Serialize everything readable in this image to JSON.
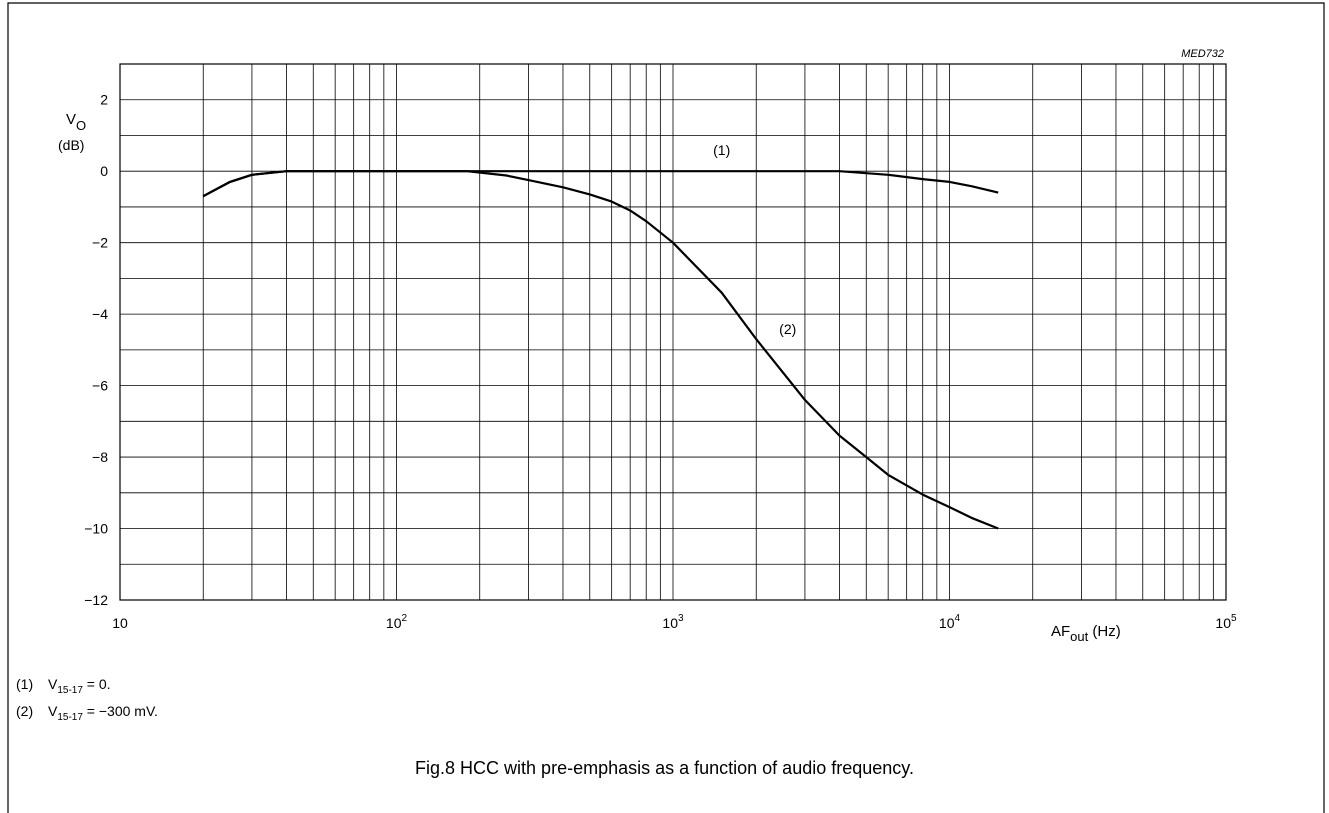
{
  "figure": {
    "code": "MED732",
    "caption": "Fig.8  HCC with pre-emphasis as a function of audio frequency."
  },
  "notes": [
    {
      "num": "(1)",
      "var": "V",
      "sub": "15-17",
      "text": " = 0."
    },
    {
      "num": "(2)",
      "var": "V",
      "sub": "15-17",
      "text": " = −300 mV."
    }
  ],
  "chart_data": {
    "type": "line",
    "x_scale": "log",
    "xlim": [
      10,
      100000
    ],
    "ylim": [
      -12,
      3
    ],
    "grid": true,
    "ylabel": {
      "main": "V",
      "sub": "O",
      "unit": "(dB)"
    },
    "xlabel": {
      "main": "AF",
      "sub": "out",
      "unit": " (Hz)"
    },
    "yticks": [
      {
        "v": 2,
        "label": "2"
      },
      {
        "v": 0,
        "label": "0"
      },
      {
        "v": -2,
        "label": "−2"
      },
      {
        "v": -4,
        "label": "−4"
      },
      {
        "v": -6,
        "label": "−6"
      },
      {
        "v": -8,
        "label": "−8"
      },
      {
        "v": -10,
        "label": "−10"
      },
      {
        "v": -12,
        "label": "−12"
      }
    ],
    "xticks": [
      {
        "v": 10,
        "base": "10",
        "exp": ""
      },
      {
        "v": 100,
        "base": "10",
        "exp": "2"
      },
      {
        "v": 1000,
        "base": "10",
        "exp": "3"
      },
      {
        "v": 10000,
        "base": "10",
        "exp": "4"
      },
      {
        "v": 100000,
        "base": "10",
        "exp": "5"
      }
    ],
    "series": [
      {
        "name": "(1)",
        "label_at": [
          1500,
          0.45
        ],
        "points": [
          [
            20,
            -0.7
          ],
          [
            25,
            -0.3
          ],
          [
            30,
            -0.1
          ],
          [
            40,
            0
          ],
          [
            100,
            0
          ],
          [
            1000,
            0
          ],
          [
            4000,
            0
          ],
          [
            6000,
            -0.1
          ],
          [
            8000,
            -0.22
          ],
          [
            10000,
            -0.3
          ],
          [
            12000,
            -0.42
          ],
          [
            15000,
            -0.6
          ]
        ]
      },
      {
        "name": "(2)",
        "label_at": [
          2600,
          -4.55
        ],
        "points": [
          [
            20,
            -0.7
          ],
          [
            25,
            -0.3
          ],
          [
            30,
            -0.1
          ],
          [
            40,
            0
          ],
          [
            100,
            0
          ],
          [
            180,
            0
          ],
          [
            250,
            -0.12
          ],
          [
            300,
            -0.25
          ],
          [
            400,
            -0.45
          ],
          [
            500,
            -0.65
          ],
          [
            600,
            -0.85
          ],
          [
            700,
            -1.1
          ],
          [
            800,
            -1.4
          ],
          [
            1000,
            -2.0
          ],
          [
            1500,
            -3.4
          ],
          [
            2000,
            -4.7
          ],
          [
            3000,
            -6.4
          ],
          [
            4000,
            -7.4
          ],
          [
            5000,
            -8.0
          ],
          [
            6000,
            -8.5
          ],
          [
            8000,
            -9.05
          ],
          [
            10000,
            -9.4
          ],
          [
            12000,
            -9.7
          ],
          [
            15000,
            -10.0
          ]
        ]
      }
    ]
  }
}
